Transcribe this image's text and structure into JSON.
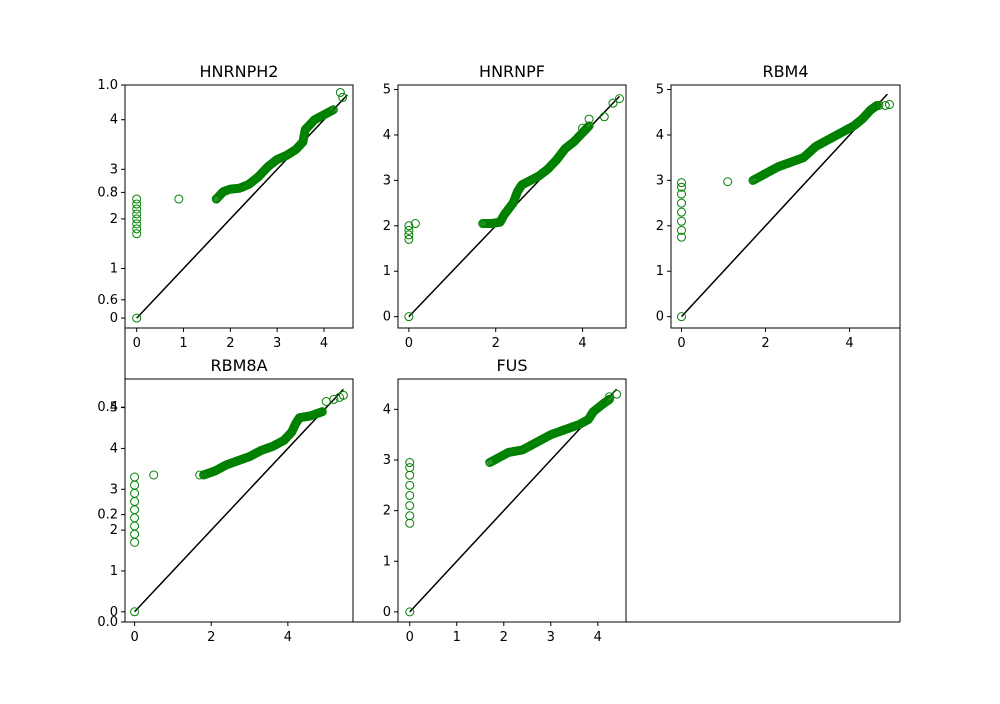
{
  "colors": {
    "marker": "#008000",
    "reference_line": "#000000",
    "axes": "#000000"
  },
  "parent_axis": {
    "ylim": [
      0.0,
      1.0
    ],
    "ytick_labels": [
      "1.0",
      "0.8",
      "0.6",
      "0.4",
      "0.2",
      "0.0"
    ]
  },
  "chart_data": [
    {
      "type": "scatter",
      "title": "HNRNPH2",
      "xlim": [
        -0.25,
        4.62
      ],
      "ylim": [
        -0.2,
        4.7
      ],
      "xticks": [
        0,
        1,
        2,
        3,
        4
      ],
      "yticks": [
        0,
        1,
        2,
        3,
        4
      ],
      "xtick_labels": [
        "0",
        "1",
        "2",
        "3",
        "4"
      ],
      "ytick_labels": [
        "0",
        "1",
        "2",
        "3",
        "4"
      ],
      "reference_line": [
        [
          0,
          0
        ],
        [
          4.5,
          4.5
        ]
      ],
      "outlier_points": [
        [
          0,
          0
        ],
        [
          0,
          1.7
        ],
        [
          0,
          1.8
        ],
        [
          0,
          1.9
        ],
        [
          0,
          2.0
        ],
        [
          0,
          2.1
        ],
        [
          0,
          2.2
        ],
        [
          0,
          2.3
        ],
        [
          0,
          2.4
        ],
        [
          0.9,
          2.4
        ],
        [
          1.7,
          2.4
        ],
        [
          1.8,
          2.5
        ],
        [
          4.35,
          4.55
        ],
        [
          4.4,
          4.45
        ]
      ],
      "trend_points": [
        [
          1.7,
          2.4
        ],
        [
          1.85,
          2.55
        ],
        [
          2.0,
          2.6
        ],
        [
          2.2,
          2.62
        ],
        [
          2.4,
          2.7
        ],
        [
          2.6,
          2.85
        ],
        [
          2.8,
          3.05
        ],
        [
          3.0,
          3.2
        ],
        [
          3.2,
          3.28
        ],
        [
          3.4,
          3.4
        ],
        [
          3.55,
          3.55
        ],
        [
          3.6,
          3.8
        ],
        [
          3.8,
          4.0
        ],
        [
          4.0,
          4.1
        ],
        [
          4.2,
          4.2
        ]
      ]
    },
    {
      "type": "scatter",
      "title": "HNRNPF",
      "xlim": [
        -0.25,
        5.0
      ],
      "ylim": [
        -0.25,
        5.1
      ],
      "xticks": [
        0,
        2,
        4
      ],
      "yticks": [
        0,
        1,
        2,
        3,
        4,
        5
      ],
      "xtick_labels": [
        "0",
        "2",
        "4"
      ],
      "ytick_labels": [
        "0",
        "1",
        "2",
        "3",
        "4",
        "5"
      ],
      "reference_line": [
        [
          0,
          0
        ],
        [
          4.85,
          4.85
        ]
      ],
      "outlier_points": [
        [
          0,
          0
        ],
        [
          0,
          1.7
        ],
        [
          0,
          1.8
        ],
        [
          0,
          1.9
        ],
        [
          0,
          2.0
        ],
        [
          0.15,
          2.05
        ],
        [
          4.0,
          4.15
        ],
        [
          4.15,
          4.35
        ],
        [
          4.5,
          4.4
        ],
        [
          4.7,
          4.7
        ],
        [
          4.85,
          4.8
        ]
      ],
      "trend_points": [
        [
          1.7,
          2.05
        ],
        [
          1.9,
          2.05
        ],
        [
          2.1,
          2.08
        ],
        [
          2.2,
          2.25
        ],
        [
          2.4,
          2.5
        ],
        [
          2.5,
          2.75
        ],
        [
          2.6,
          2.9
        ],
        [
          2.8,
          3.0
        ],
        [
          3.0,
          3.1
        ],
        [
          3.2,
          3.25
        ],
        [
          3.4,
          3.45
        ],
        [
          3.6,
          3.7
        ],
        [
          3.8,
          3.85
        ],
        [
          4.0,
          4.05
        ],
        [
          4.15,
          4.2
        ]
      ]
    },
    {
      "type": "scatter",
      "title": "RBM4",
      "xlim": [
        -0.25,
        5.2
      ],
      "ylim": [
        -0.25,
        5.1
      ],
      "xticks": [
        0,
        2,
        4
      ],
      "yticks": [
        0,
        1,
        2,
        3,
        4,
        5
      ],
      "xtick_labels": [
        "0",
        "2",
        "4"
      ],
      "ytick_labels": [
        "0",
        "1",
        "2",
        "3",
        "4",
        "5"
      ],
      "reference_line": [
        [
          0,
          0
        ],
        [
          4.9,
          4.9
        ]
      ],
      "outlier_points": [
        [
          0,
          0
        ],
        [
          0,
          1.75
        ],
        [
          0,
          1.9
        ],
        [
          0,
          2.1
        ],
        [
          0,
          2.3
        ],
        [
          0,
          2.5
        ],
        [
          0,
          2.7
        ],
        [
          0,
          2.85
        ],
        [
          0,
          2.95
        ],
        [
          1.1,
          2.97
        ],
        [
          4.7,
          4.65
        ],
        [
          4.85,
          4.65
        ],
        [
          4.95,
          4.67
        ]
      ],
      "trend_points": [
        [
          1.7,
          3.0
        ],
        [
          2.0,
          3.15
        ],
        [
          2.3,
          3.3
        ],
        [
          2.6,
          3.4
        ],
        [
          2.9,
          3.5
        ],
        [
          3.2,
          3.75
        ],
        [
          3.5,
          3.9
        ],
        [
          3.8,
          4.05
        ],
        [
          4.1,
          4.2
        ],
        [
          4.3,
          4.35
        ],
        [
          4.5,
          4.55
        ],
        [
          4.65,
          4.65
        ]
      ]
    },
    {
      "type": "scatter",
      "title": "RBM8A",
      "xlim": [
        -0.25,
        5.7
      ],
      "ylim": [
        -0.25,
        5.7
      ],
      "xticks": [
        0,
        2,
        4
      ],
      "yticks": [
        0,
        1,
        2,
        3,
        4,
        5
      ],
      "xtick_labels": [
        "0",
        "2",
        "4"
      ],
      "ytick_labels": [
        "0",
        "1",
        "2",
        "3",
        "4",
        "5"
      ],
      "reference_line": [
        [
          0,
          0
        ],
        [
          5.45,
          5.45
        ]
      ],
      "outlier_points": [
        [
          0,
          0
        ],
        [
          0,
          1.7
        ],
        [
          0,
          1.9
        ],
        [
          0,
          2.1
        ],
        [
          0,
          2.3
        ],
        [
          0,
          2.5
        ],
        [
          0,
          2.7
        ],
        [
          0,
          2.9
        ],
        [
          0,
          3.1
        ],
        [
          0,
          3.3
        ],
        [
          0.5,
          3.35
        ],
        [
          1.7,
          3.35
        ],
        [
          5.0,
          5.15
        ],
        [
          5.2,
          5.2
        ],
        [
          5.35,
          5.25
        ],
        [
          5.45,
          5.3
        ]
      ],
      "trend_points": [
        [
          1.8,
          3.35
        ],
        [
          2.1,
          3.45
        ],
        [
          2.4,
          3.6
        ],
        [
          2.7,
          3.7
        ],
        [
          3.0,
          3.8
        ],
        [
          3.3,
          3.95
        ],
        [
          3.6,
          4.05
        ],
        [
          3.9,
          4.2
        ],
        [
          4.1,
          4.4
        ],
        [
          4.2,
          4.6
        ],
        [
          4.3,
          4.75
        ],
        [
          4.6,
          4.8
        ],
        [
          4.9,
          4.9
        ]
      ]
    },
    {
      "type": "scatter",
      "title": "FUS",
      "xlim": [
        -0.25,
        4.6
      ],
      "ylim": [
        -0.2,
        4.6
      ],
      "xticks": [
        0,
        1,
        2,
        3,
        4
      ],
      "yticks": [
        0,
        1,
        2,
        3,
        4
      ],
      "xtick_labels": [
        "0",
        "1",
        "2",
        "3",
        "4"
      ],
      "ytick_labels": [
        "0",
        "1",
        "2",
        "3",
        "4"
      ],
      "reference_line": [
        [
          0,
          0
        ],
        [
          4.4,
          4.4
        ]
      ],
      "outlier_points": [
        [
          0,
          0
        ],
        [
          0,
          1.75
        ],
        [
          0,
          1.9
        ],
        [
          0,
          2.1
        ],
        [
          0,
          2.3
        ],
        [
          0,
          2.5
        ],
        [
          0,
          2.7
        ],
        [
          0,
          2.85
        ],
        [
          0,
          2.95
        ],
        [
          4.25,
          4.25
        ],
        [
          4.4,
          4.3
        ]
      ],
      "trend_points": [
        [
          1.7,
          2.95
        ],
        [
          1.9,
          3.05
        ],
        [
          2.1,
          3.15
        ],
        [
          2.4,
          3.2
        ],
        [
          2.7,
          3.35
        ],
        [
          3.0,
          3.5
        ],
        [
          3.3,
          3.6
        ],
        [
          3.6,
          3.7
        ],
        [
          3.8,
          3.8
        ],
        [
          3.9,
          3.95
        ],
        [
          4.1,
          4.1
        ],
        [
          4.25,
          4.2
        ]
      ]
    }
  ]
}
